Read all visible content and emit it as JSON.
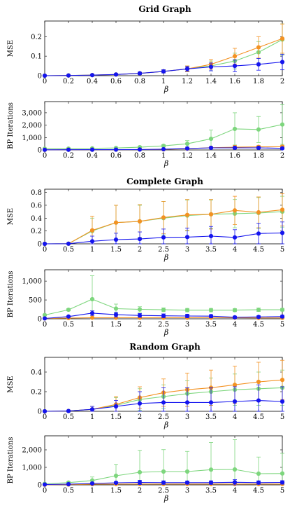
{
  "figure": {
    "sections": [
      {
        "title": "Grid Graph"
      },
      {
        "title": "Complete Graph"
      },
      {
        "title": "Random Graph"
      }
    ]
  },
  "colors": {
    "blue": "#1515ee",
    "orange": "#f39222",
    "green": "#7dd67d"
  },
  "chart_data": [
    {
      "type": "line",
      "title": "Grid Graph",
      "xlabel": "β",
      "ylabel": "MSE",
      "x": [
        0,
        0.2,
        0.4,
        0.6,
        0.8,
        1,
        1.2,
        1.4,
        1.6,
        1.8,
        2
      ],
      "xticks": [
        "0",
        "0.2",
        "0.4",
        "0.6",
        "0.8",
        "1",
        "1.2",
        "1.4",
        "1.6",
        "1.8",
        "2"
      ],
      "xlim": [
        0,
        2
      ],
      "ylim": [
        0,
        0.28
      ],
      "yticks": [
        0,
        0.1,
        0.2
      ],
      "ytick_labels": [
        "0",
        "0.1",
        "0.2"
      ],
      "series": [
        {
          "color": "#7dd67d",
          "values": [
            0,
            0.001,
            0.003,
            0.006,
            0.012,
            0.022,
            0.035,
            0.05,
            0.075,
            0.12,
            0.185
          ],
          "errors": [
            0,
            0.001,
            0.002,
            0.004,
            0.006,
            0.008,
            0.015,
            0.025,
            0.04,
            0.055,
            0.08
          ]
        },
        {
          "color": "#f39222",
          "values": [
            0,
            0.001,
            0.003,
            0.006,
            0.012,
            0.022,
            0.035,
            0.058,
            0.1,
            0.145,
            0.19
          ],
          "errors": [
            0,
            0.001,
            0.002,
            0.004,
            0.006,
            0.008,
            0.015,
            0.025,
            0.04,
            0.055,
            0.075
          ]
        },
        {
          "color": "#1515ee",
          "values": [
            0,
            0.001,
            0.003,
            0.006,
            0.012,
            0.022,
            0.035,
            0.045,
            0.05,
            0.058,
            0.07
          ],
          "errors": [
            0,
            0.001,
            0.002,
            0.004,
            0.006,
            0.008,
            0.012,
            0.02,
            0.03,
            0.03,
            0.04
          ]
        }
      ]
    },
    {
      "type": "line",
      "title": "",
      "xlabel": "β",
      "ylabel": "BP Iterations",
      "x": [
        0,
        0.2,
        0.4,
        0.6,
        0.8,
        1,
        1.2,
        1.4,
        1.6,
        1.8,
        2
      ],
      "xticks": [
        "0",
        "0.2",
        "0.4",
        "0.6",
        "0.8",
        "1",
        "1.2",
        "1.4",
        "1.6",
        "1.8",
        "2"
      ],
      "xlim": [
        0,
        2
      ],
      "ylim": [
        0,
        3900
      ],
      "yticks": [
        0,
        1000,
        2000,
        3000
      ],
      "ytick_labels": [
        "0",
        "1,000",
        "2,000",
        "3,000"
      ],
      "series": [
        {
          "color": "#7dd67d",
          "values": [
            100,
            110,
            130,
            160,
            220,
            330,
            500,
            900,
            1700,
            1650,
            2050
          ],
          "errors": [
            30,
            40,
            40,
            60,
            80,
            100,
            250,
            700,
            1300,
            1050,
            1600
          ]
        },
        {
          "color": "#f39222",
          "values": [
            10,
            15,
            20,
            25,
            30,
            45,
            100,
            180,
            220,
            250,
            260
          ],
          "errors": [
            5,
            5,
            10,
            10,
            10,
            20,
            40,
            80,
            150,
            100,
            100
          ]
        },
        {
          "color": "#1515ee",
          "values": [
            10,
            15,
            20,
            25,
            35,
            60,
            120,
            170,
            170,
            170,
            130
          ],
          "errors": [
            5,
            5,
            10,
            10,
            10,
            20,
            40,
            60,
            80,
            80,
            60
          ]
        }
      ]
    },
    {
      "type": "line",
      "title": "Complete Graph",
      "xlabel": "β",
      "ylabel": "MSE",
      "x": [
        0,
        0.5,
        1,
        1.5,
        2,
        2.5,
        3,
        3.5,
        4,
        4.5,
        5
      ],
      "xticks": [
        "0",
        "0.5",
        "1",
        "1.5",
        "2",
        "2.5",
        "3",
        "3.5",
        "4",
        "4.5",
        "5"
      ],
      "xlim": [
        0,
        5
      ],
      "ylim": [
        0,
        0.85
      ],
      "yticks": [
        0,
        0.2,
        0.4,
        0.6,
        0.8
      ],
      "ytick_labels": [
        "0",
        "0.2",
        "0.4",
        "0.6",
        "0.8"
      ],
      "series": [
        {
          "color": "#7dd67d",
          "values": [
            0,
            0.002,
            0.2,
            0.33,
            0.35,
            0.4,
            0.44,
            0.46,
            0.47,
            0.48,
            0.5
          ],
          "errors": [
            0,
            0.002,
            0.2,
            0.27,
            0.25,
            0.26,
            0.24,
            0.22,
            0.22,
            0.24,
            0.24
          ]
        },
        {
          "color": "#f39222",
          "values": [
            0,
            0.002,
            0.21,
            0.33,
            0.35,
            0.41,
            0.45,
            0.46,
            0.52,
            0.49,
            0.53
          ],
          "errors": [
            0,
            0.002,
            0.22,
            0.27,
            0.26,
            0.25,
            0.24,
            0.23,
            0.22,
            0.24,
            0.25
          ]
        },
        {
          "color": "#1515ee",
          "values": [
            0,
            0.002,
            0.04,
            0.065,
            0.075,
            0.1,
            0.105,
            0.12,
            0.1,
            0.16,
            0.17
          ],
          "errors": [
            0,
            0.002,
            0.08,
            0.1,
            0.11,
            0.13,
            0.14,
            0.15,
            0.12,
            0.16,
            0.17
          ]
        }
      ]
    },
    {
      "type": "line",
      "title": "",
      "xlabel": "β",
      "ylabel": "BP Iterations",
      "x": [
        0,
        0.5,
        1,
        1.5,
        2,
        2.5,
        3,
        3.5,
        4,
        4.5,
        5
      ],
      "xticks": [
        "0",
        "0.5",
        "1",
        "1.5",
        "2",
        "2.5",
        "3",
        "3.5",
        "4",
        "4.5",
        "5"
      ],
      "xlim": [
        0,
        5
      ],
      "ylim": [
        0,
        1300
      ],
      "yticks": [
        0,
        500,
        1000
      ],
      "ytick_labels": [
        "0",
        "500",
        "1,000"
      ],
      "series": [
        {
          "color": "#7dd67d",
          "values": [
            100,
            240,
            520,
            270,
            250,
            240,
            230,
            230,
            230,
            240,
            240
          ],
          "errors": [
            15,
            30,
            620,
            120,
            70,
            50,
            45,
            45,
            40,
            45,
            35
          ]
        },
        {
          "color": "#f39222",
          "values": [
            10,
            20,
            30,
            30,
            30,
            30,
            30,
            30,
            30,
            25,
            25
          ],
          "errors": [
            5,
            5,
            10,
            10,
            10,
            10,
            10,
            10,
            10,
            10,
            10
          ]
        },
        {
          "color": "#1515ee",
          "values": [
            10,
            60,
            150,
            110,
            90,
            80,
            75,
            70,
            40,
            50,
            60
          ],
          "errors": [
            5,
            20,
            60,
            60,
            50,
            50,
            45,
            40,
            30,
            30,
            35
          ]
        }
      ]
    },
    {
      "type": "line",
      "title": "Random Graph",
      "xlabel": "β",
      "ylabel": "MSE",
      "x": [
        0,
        0.5,
        1,
        1.5,
        2,
        2.5,
        3,
        3.5,
        4,
        4.5,
        5
      ],
      "xticks": [
        "0",
        "0.5",
        "1",
        "1.5",
        "2",
        "2.5",
        "3",
        "3.5",
        "4",
        "4.5",
        "5"
      ],
      "xlim": [
        0,
        5
      ],
      "ylim": [
        0,
        0.55
      ],
      "yticks": [
        0,
        0.2,
        0.4
      ],
      "ytick_labels": [
        "0",
        "0.2",
        "0.4"
      ],
      "series": [
        {
          "color": "#7dd67d",
          "values": [
            0,
            0.003,
            0.02,
            0.06,
            0.12,
            0.15,
            0.18,
            0.2,
            0.22,
            0.23,
            0.24
          ],
          "errors": [
            0,
            0.003,
            0.03,
            0.08,
            0.11,
            0.12,
            0.13,
            0.14,
            0.16,
            0.17,
            0.18
          ]
        },
        {
          "color": "#f39222",
          "values": [
            0,
            0.003,
            0.02,
            0.07,
            0.14,
            0.19,
            0.22,
            0.24,
            0.27,
            0.3,
            0.32
          ],
          "errors": [
            0,
            0.003,
            0.03,
            0.08,
            0.11,
            0.14,
            0.17,
            0.18,
            0.19,
            0.2,
            0.2
          ]
        },
        {
          "color": "#1515ee",
          "values": [
            0,
            0.003,
            0.02,
            0.05,
            0.08,
            0.09,
            0.09,
            0.09,
            0.1,
            0.11,
            0.1
          ],
          "errors": [
            0,
            0.003,
            0.03,
            0.06,
            0.12,
            0.15,
            0.15,
            0.15,
            0.15,
            0.16,
            0.15
          ]
        }
      ]
    },
    {
      "type": "line",
      "title": "",
      "xlabel": "β",
      "ylabel": "BP Iterations",
      "x": [
        0,
        0.5,
        1,
        1.5,
        2,
        2.5,
        3,
        3.5,
        4,
        4.5,
        5
      ],
      "xticks": [
        "0",
        "0.5",
        "1",
        "1.5",
        "2",
        "2.5",
        "3",
        "3.5",
        "4",
        "4.5",
        "5"
      ],
      "xlim": [
        0,
        5
      ],
      "ylim": [
        0,
        2800
      ],
      "yticks": [
        0,
        1000,
        2000
      ],
      "ytick_labels": [
        "0",
        "1,000",
        "2,000"
      ],
      "series": [
        {
          "color": "#7dd67d",
          "values": [
            60,
            130,
            250,
            520,
            720,
            760,
            760,
            870,
            880,
            640,
            650
          ],
          "errors": [
            20,
            50,
            200,
            650,
            1250,
            1250,
            1150,
            1550,
            1700,
            950,
            1150
          ]
        },
        {
          "color": "#f39222",
          "values": [
            10,
            20,
            40,
            50,
            50,
            50,
            50,
            50,
            50,
            50,
            50
          ],
          "errors": [
            5,
            10,
            20,
            30,
            30,
            30,
            30,
            30,
            30,
            30,
            30
          ]
        },
        {
          "color": "#1515ee",
          "values": [
            20,
            40,
            80,
            120,
            140,
            130,
            130,
            130,
            150,
            130,
            140
          ],
          "errors": [
            10,
            20,
            40,
            60,
            120,
            100,
            90,
            100,
            150,
            100,
            100
          ]
        }
      ]
    }
  ]
}
